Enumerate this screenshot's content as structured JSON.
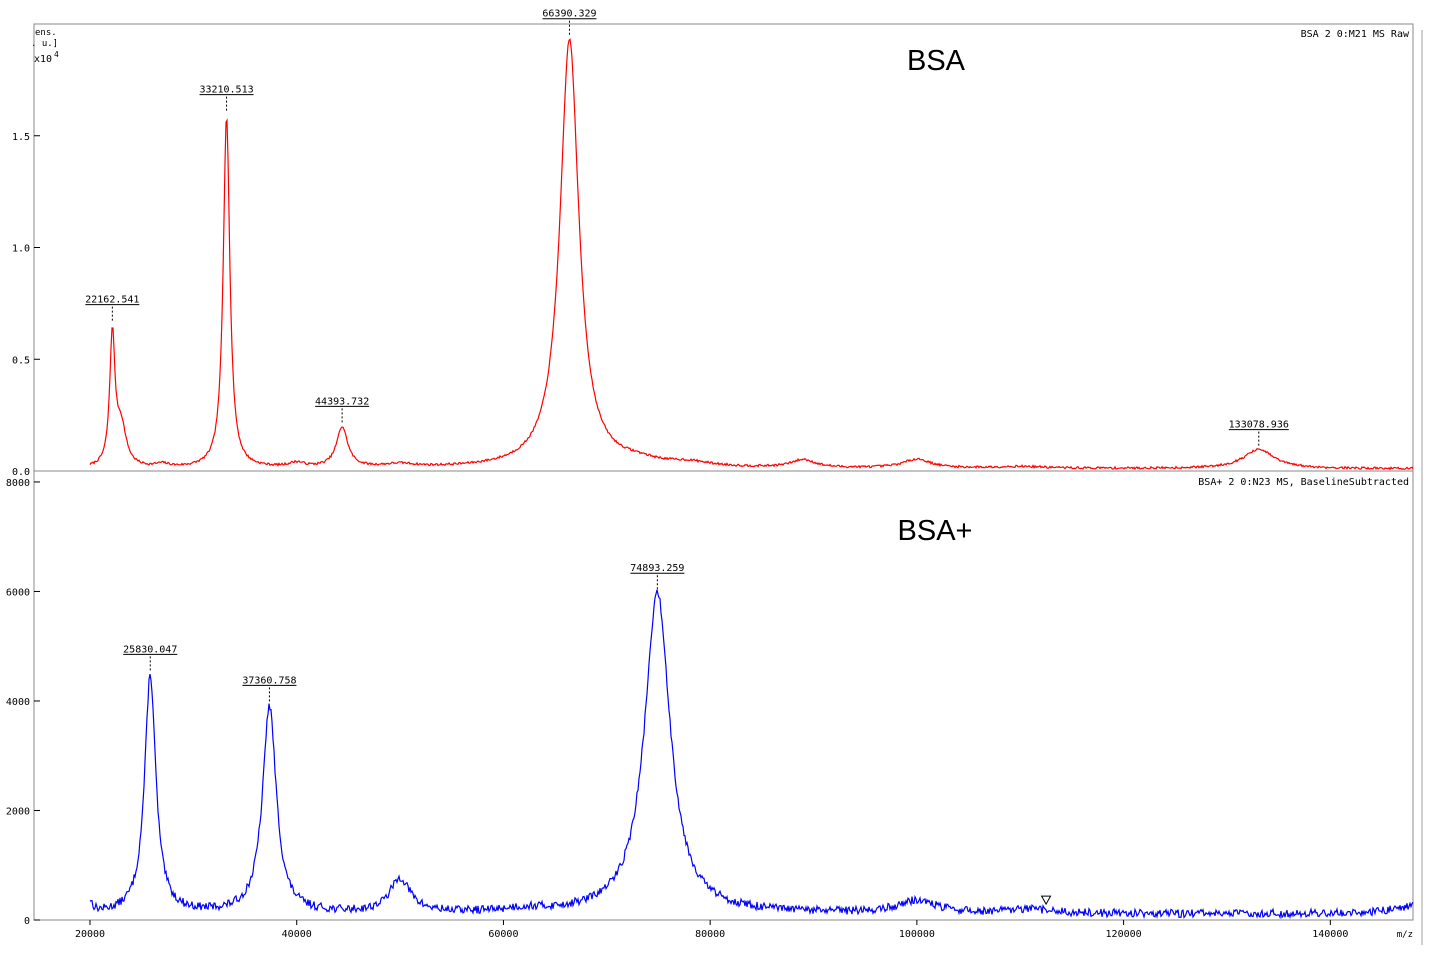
{
  "chart_data": [
    {
      "type": "line",
      "big_label": "BSA",
      "info_text": "BSA  2 0:M21 MS Raw",
      "ylabel_lines": [
        "ens.",
        ". u.]",
        "x10",
        "4"
      ],
      "xlim": [
        20000,
        148000
      ],
      "ylim": [
        0,
        2.0
      ],
      "y_ticks": [
        {
          "value": 0.0,
          "label": "0.0"
        },
        {
          "value": 0.5,
          "label": "0.5"
        },
        {
          "value": 1.0,
          "label": "1.0"
        },
        {
          "value": 1.5,
          "label": "1.5"
        }
      ],
      "baseline": 0.01,
      "color": "#ff0000",
      "peaks": [
        {
          "x": 22162.541,
          "h": 0.58,
          "w": 300
        },
        {
          "x": 23000,
          "h": 0.18,
          "w": 600
        },
        {
          "x": 27000,
          "h": 0.015,
          "w": 800
        },
        {
          "x": 33210.513,
          "h": 1.58,
          "w": 380
        },
        {
          "x": 40000,
          "h": 0.02,
          "w": 900
        },
        {
          "x": 44393.732,
          "h": 0.18,
          "w": 650
        },
        {
          "x": 50000,
          "h": 0.015,
          "w": 1800
        },
        {
          "x": 66390.329,
          "h": 1.92,
          "w": 1100
        },
        {
          "x": 73000,
          "h": 0.02,
          "w": 2500
        },
        {
          "x": 78000,
          "h": 0.018,
          "w": 2500
        },
        {
          "x": 89000,
          "h": 0.035,
          "w": 1400
        },
        {
          "x": 100000,
          "h": 0.04,
          "w": 1600
        },
        {
          "x": 110000,
          "h": 0.008,
          "w": 3000
        },
        {
          "x": 133078.936,
          "h": 0.085,
          "w": 1800
        }
      ],
      "labeled_peaks": [
        {
          "x": 22162.541,
          "label": "22162.541"
        },
        {
          "x": 33210.513,
          "label": "33210.513"
        },
        {
          "x": 44393.732,
          "label": "44393.732"
        },
        {
          "x": 66390.329,
          "label": "66390.329"
        },
        {
          "x": 133078.936,
          "label": "133078.936"
        }
      ]
    },
    {
      "type": "line",
      "big_label": "BSA+",
      "info_text": "BSA+  2 0:N23 MS, BaselineSubtracted",
      "xlabel": "m/z",
      "xlim": [
        20000,
        148000
      ],
      "ylim": [
        0,
        8200
      ],
      "x_ticks": [
        {
          "value": 20000,
          "label": "20000"
        },
        {
          "value": 40000,
          "label": "40000"
        },
        {
          "value": 60000,
          "label": "60000"
        },
        {
          "value": 80000,
          "label": "80000"
        },
        {
          "value": 100000,
          "label": "100000"
        },
        {
          "value": 120000,
          "label": "120000"
        },
        {
          "value": 140000,
          "label": "140000"
        }
      ],
      "y_ticks": [
        {
          "value": 0,
          "label": "0"
        },
        {
          "value": 2000,
          "label": "2000"
        },
        {
          "value": 4000,
          "label": "4000"
        },
        {
          "value": 6000,
          "label": "6000"
        },
        {
          "value": 8000,
          "label": "8000"
        }
      ],
      "baseline": 110,
      "color": "#0000ff",
      "peaks": [
        {
          "x": 20000,
          "h": 200,
          "w": 300
        },
        {
          "x": 25830.047,
          "h": 4350,
          "w": 650
        },
        {
          "x": 37360.758,
          "h": 3780,
          "w": 800
        },
        {
          "x": 50000,
          "h": 620,
          "w": 1200
        },
        {
          "x": 62000,
          "h": 60,
          "w": 2500
        },
        {
          "x": 74893.259,
          "h": 5850,
          "w": 1500
        },
        {
          "x": 100000,
          "h": 230,
          "w": 2200
        },
        {
          "x": 111000,
          "h": 70,
          "w": 2500
        },
        {
          "x": 149000,
          "h": 200,
          "w": 2500
        }
      ],
      "labeled_peaks": [
        {
          "x": 25830.047,
          "label": "25830.047"
        },
        {
          "x": 37360.758,
          "label": "37360.758"
        },
        {
          "x": 74893.259,
          "label": "74893.259"
        }
      ],
      "marker_x": 112500
    }
  ]
}
